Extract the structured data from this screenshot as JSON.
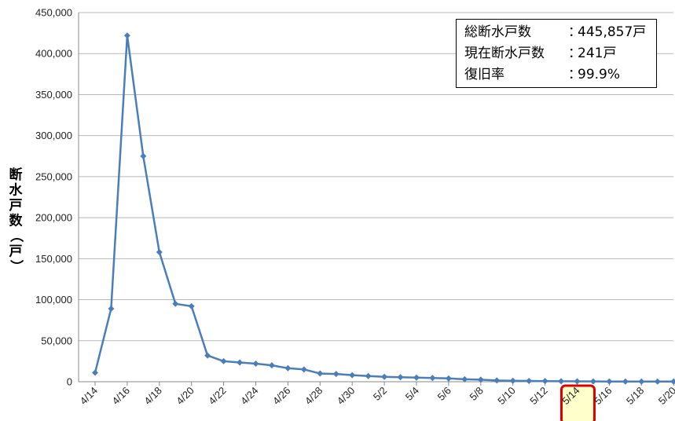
{
  "chart_data": {
    "type": "line",
    "title": "",
    "xlabel": "",
    "ylabel": "断水戸数（戸）",
    "ylim": [
      0,
      450000
    ],
    "yticks": [
      "0",
      "50,000",
      "100,000",
      "150,000",
      "200,000",
      "250,000",
      "300,000",
      "350,000",
      "400,000",
      "450,000"
    ],
    "yticks_values": [
      0,
      50000,
      100000,
      150000,
      200000,
      250000,
      300000,
      350000,
      400000,
      450000
    ],
    "x_tick_labels": [
      "4/14",
      "4/16",
      "4/18",
      "4/20",
      "4/22",
      "4/24",
      "4/26",
      "4/28",
      "4/30",
      "5/2",
      "5/4",
      "5/6",
      "5/8",
      "5/10",
      "5/12",
      "5/14",
      "5/16",
      "5/18",
      "5/20"
    ],
    "highlighted_tick": "5/14",
    "grid": true,
    "series_color": "#4a7ebb",
    "highlight_color": "#e00000",
    "highlight_fill": "#ffffcc",
    "series": [
      {
        "x": [
          "4/14",
          "4/15",
          "4/16",
          "4/17",
          "4/18",
          "4/19",
          "4/20",
          "4/21",
          "4/22",
          "4/23",
          "4/24",
          "4/25",
          "4/26",
          "4/27",
          "4/28",
          "4/29",
          "4/30",
          "5/1",
          "5/2",
          "5/3",
          "5/4",
          "5/5",
          "5/6",
          "5/7",
          "5/8",
          "5/9",
          "5/10",
          "5/11",
          "5/12",
          "5/13",
          "5/14",
          "5/15",
          "5/16",
          "5/17",
          "5/18",
          "5/19",
          "5/20"
        ],
        "values": [
          11000,
          89000,
          422000,
          275000,
          158000,
          95000,
          92000,
          32000,
          25000,
          23500,
          22000,
          20000,
          16500,
          15000,
          10000,
          9500,
          8000,
          7000,
          6000,
          5500,
          5000,
          4500,
          4000,
          3000,
          2500,
          1500,
          1200,
          1000,
          800,
          600,
          500,
          400,
          300,
          280,
          260,
          250,
          241
        ]
      }
    ]
  },
  "info_box": {
    "rows": [
      {
        "label": "総断水戸数",
        "sep": "：",
        "value": "445,857戸"
      },
      {
        "label": "現在断水戸数",
        "sep": "：",
        "value": "241戸"
      },
      {
        "label": "復旧率",
        "sep": "：",
        "value": "99.9%"
      }
    ]
  }
}
